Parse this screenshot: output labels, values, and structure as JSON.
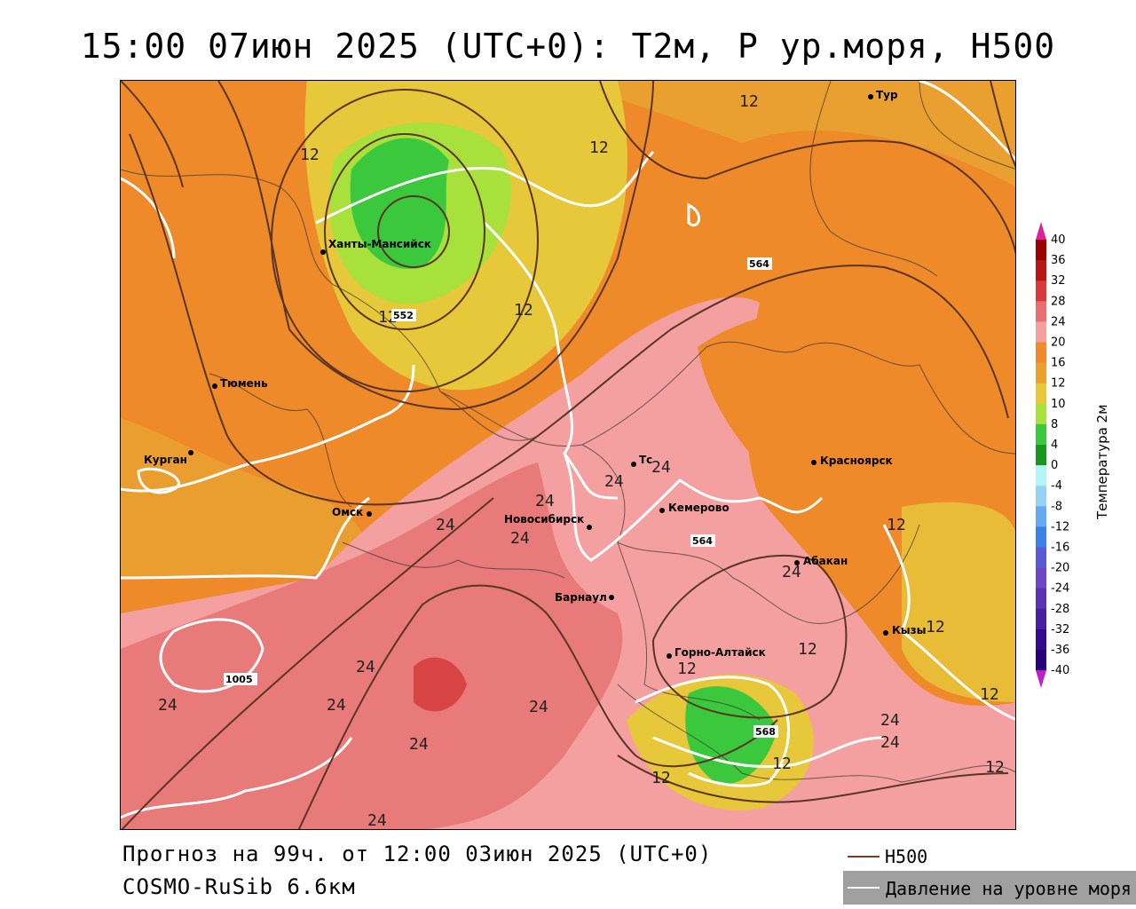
{
  "title": "15:00 07июн 2025 (UTC+0): T2м, P ур.моря, H500",
  "footer": {
    "forecast": "Прогноз на 99ч. от 12:00 03июн 2025 (UTC+0)",
    "model": "COSMO-RuSib 6.6км"
  },
  "legend": {
    "h500_label": "H500",
    "h500_color": "#7a3a2a",
    "pressure_label": "Давление на уровне моря",
    "pressure_color": "#ffffff"
  },
  "colorbar": {
    "title": "Температура 2м",
    "ticks": [
      "40",
      "36",
      "32",
      "28",
      "24",
      "20",
      "16",
      "12",
      "10",
      "8",
      "4",
      "0",
      "-4",
      "-8",
      "-12",
      "-16",
      "-20",
      "-24",
      "-28",
      "-32",
      "-36",
      "-40"
    ],
    "colors": [
      "#9b0000",
      "#b81414",
      "#d83b3b",
      "#e86f6f",
      "#f4a0a0",
      "#ee8a2a",
      "#e9a030",
      "#e6c83a",
      "#a8e03c",
      "#3cc83c",
      "#18961e",
      "#b4f4f4",
      "#96d2f4",
      "#64aaee",
      "#3c82e6",
      "#5a5ad2",
      "#6e46c8",
      "#5a32b4",
      "#46209e",
      "#320c8c",
      "#280078"
    ]
  },
  "cities": [
    {
      "name": "Ханты-Мансийск"
    },
    {
      "name": "Тюмень"
    },
    {
      "name": "Курган"
    },
    {
      "name": "Омск"
    },
    {
      "name": "Новосибирск"
    },
    {
      "name": "Тс"
    },
    {
      "name": "Кемерово"
    },
    {
      "name": "Барнаул"
    },
    {
      "name": "Горно-Алтайск"
    },
    {
      "name": "Абакан"
    },
    {
      "name": "Красноярск"
    },
    {
      "name": "Кызы"
    },
    {
      "name": "Тур"
    }
  ],
  "isotherm_labels": [
    "12",
    "12",
    "12",
    "12",
    "12",
    "12",
    "12",
    "12",
    "12",
    "12",
    "12",
    "12",
    "12",
    "24",
    "24",
    "24",
    "24",
    "24",
    "24",
    "24",
    "24",
    "24",
    "24",
    "24",
    "24",
    "24",
    "24"
  ],
  "h500_labels": [
    "564",
    "564",
    "568",
    "552"
  ],
  "pressure_labels": [
    "1005"
  ]
}
